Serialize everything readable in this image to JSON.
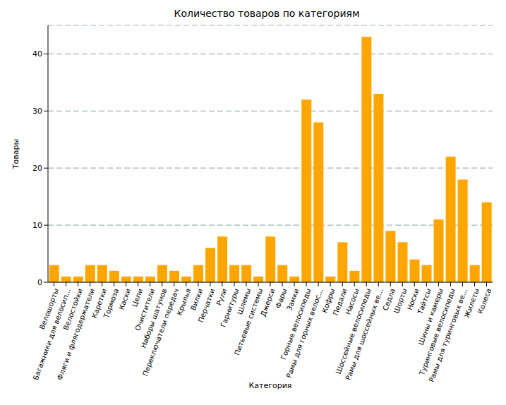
{
  "chart_data": {
    "type": "bar",
    "title": "Количество товаров по категориям",
    "x_label": "Категория",
    "y_label": "Товары",
    "categories": [
      "Велошорты",
      "Багажники для велосип...",
      "Велостойки",
      "Фляги и флягодержатели",
      "Каретки",
      "Тормоза",
      "Каски",
      "Цепи",
      "Очистители",
      "Наборы шатунов",
      "Переключатели передач",
      "Крылья",
      "Вилки",
      "Перчатки",
      "Рули",
      "Гарнитуры",
      "Шлемы",
      "Питьевые системы",
      "Джерси",
      "Фары",
      "Замки",
      "Горные велосипеды",
      "Рамы для горных велос...",
      "Кофры",
      "Педали",
      "Насосы",
      "Шоссейные велосипеды",
      "Рамы для шоссейных ве...",
      "Седла",
      "Шорты",
      "Носки",
      "Тайтсы",
      "Шины и камеры",
      "Туринговые велосипеды",
      "Рамы для туринговых ве...",
      "Жилеты",
      "Колеса"
    ],
    "values": [
      3,
      1,
      1,
      3,
      3,
      2,
      1,
      1,
      1,
      3,
      2,
      1,
      3,
      6,
      8,
      3,
      3,
      1,
      8,
      3,
      1,
      32,
      28,
      1,
      7,
      2,
      43,
      33,
      9,
      7,
      4,
      3,
      11,
      22,
      18,
      3,
      14
    ],
    "color": "#ffa500",
    "ylim": [
      0,
      45
    ],
    "yticks": [
      0,
      10,
      20,
      30,
      40
    ],
    "grid": true
  }
}
